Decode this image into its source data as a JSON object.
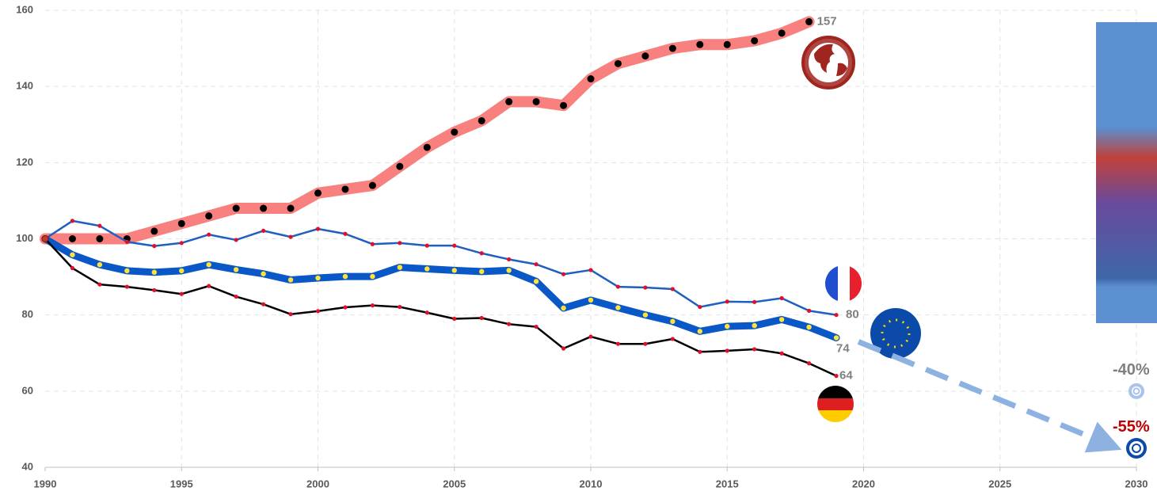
{
  "chart_data": {
    "type": "line",
    "x": [
      1990,
      1991,
      1992,
      1993,
      1994,
      1995,
      1996,
      1997,
      1998,
      1999,
      2000,
      2001,
      2002,
      2003,
      2004,
      2005,
      2006,
      2007,
      2008,
      2009,
      2010,
      2011,
      2012,
      2013,
      2014,
      2015,
      2016,
      2017,
      2018,
      2019
    ],
    "series": [
      {
        "color": "#f8807e",
        "marker_color": "#000000",
        "values": [
          100,
          100,
          100,
          100,
          102,
          104,
          106,
          108,
          108,
          108,
          112,
          113,
          114,
          119,
          124,
          128,
          131,
          136,
          136,
          135,
          142,
          146,
          148,
          150,
          151,
          151,
          152,
          154,
          157,
          null
        ]
      },
      {
        "color": "#1f5fbf",
        "marker_color": "#e0102a",
        "values": [
          100,
          104.7,
          103.4,
          99.2,
          98.1,
          98.9,
          101.1,
          99.7,
          102.1,
          100.5,
          102.6,
          101.3,
          98.6,
          98.9,
          98.2,
          98.2,
          96.2,
          94.6,
          93.3,
          90.7,
          91.8,
          87.4,
          87.2,
          86.8,
          82.1,
          83.5,
          83.4,
          84.4,
          81.1,
          80
        ]
      },
      {
        "color": "#0a58c7",
        "marker_color": "#ffe33a",
        "values": [
          100,
          95.8,
          93.2,
          91.6,
          91.2,
          91.6,
          93.2,
          91.9,
          90.8,
          89.2,
          89.7,
          90.1,
          90.1,
          92.5,
          92.1,
          91.7,
          91.4,
          91.7,
          88.8,
          81.8,
          83.9,
          81.9,
          80.0,
          78.3,
          75.7,
          77.0,
          77.2,
          78.8,
          76.8,
          74
        ]
      },
      {
        "color": "#000000",
        "marker_color": "#e0102a",
        "values": [
          100,
          92.3,
          88.0,
          87.4,
          86.5,
          85.5,
          87.6,
          84.8,
          82.8,
          80.2,
          81.0,
          82.0,
          82.5,
          82.1,
          80.6,
          79.0,
          79.2,
          77.6,
          76.9,
          71.2,
          74.3,
          72.4,
          72.4,
          73.7,
          70.3,
          70.6,
          71.0,
          69.9,
          67.3,
          64
        ]
      }
    ],
    "targets": [
      {
        "x": 2030,
        "y": 60,
        "label": "-40%",
        "color": "#7f7f7f"
      },
      {
        "x": 2030,
        "y": 45,
        "label": "-55%",
        "color": "#c00000"
      }
    ],
    "xlim": [
      1990,
      2030
    ],
    "xticks": [
      1990,
      1995,
      2000,
      2005,
      2010,
      2015,
      2020,
      2025,
      2030
    ],
    "ylim": [
      40,
      160
    ],
    "yticks": [
      40,
      60,
      80,
      100,
      120,
      140,
      160
    ],
    "grid": true
  }
}
